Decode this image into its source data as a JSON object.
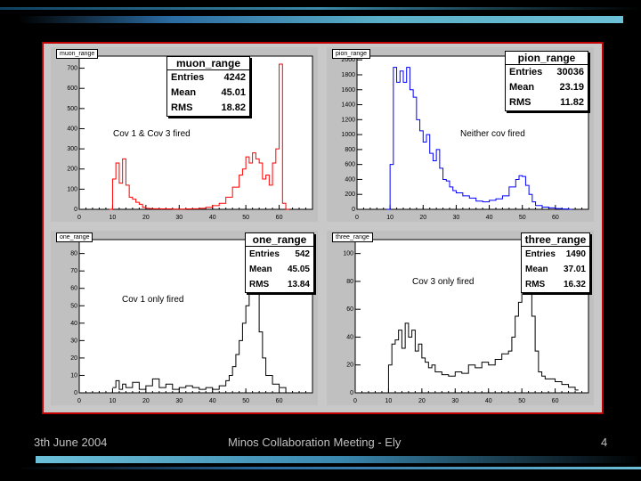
{
  "footer": {
    "date": "3th June 2004",
    "title": "Minos Collaboration Meeting - Ely",
    "page": "4"
  },
  "colors": {
    "background": "#000000",
    "frame": "#c00000",
    "pad": "#c0c0c0"
  },
  "panels": {
    "muon": {
      "tag": "muon_range",
      "stats_title": "muon_range",
      "entries": "4242",
      "mean": "45.01",
      "rms": "18.82",
      "note": "Cov 1 & Cov 3 fired",
      "color": "#ff0000"
    },
    "pion": {
      "tag": "pion_range",
      "stats_title": "pion_range",
      "entries": "30036",
      "mean": "23.19",
      "rms": "11.82",
      "note": "Neither cov fired",
      "color": "#0000ff"
    },
    "one": {
      "tag": "one_range",
      "stats_title": "one_range",
      "entries": "542",
      "mean": "45.05",
      "rms": "13.84",
      "note": "Cov 1 only fired",
      "color": "#000000"
    },
    "three": {
      "tag": "three_range",
      "stats_title": "three_range",
      "entries": "1490",
      "mean": "37.01",
      "rms": "16.32",
      "note": "Cov 3 only fired",
      "color": "#000000"
    }
  },
  "labels": {
    "entries": "Entries",
    "mean": "Mean",
    "rms": "RMS"
  },
  "chart_data": [
    {
      "type": "histogram",
      "name": "muon_range",
      "xlim": [
        0,
        70
      ],
      "ylim": [
        0,
        760
      ],
      "xticks": [
        0,
        10,
        20,
        30,
        40,
        50,
        60
      ],
      "yticks": [
        0,
        100,
        200,
        300,
        400,
        500,
        600,
        700
      ],
      "x": [
        9,
        10,
        11,
        12,
        13,
        14,
        15,
        16,
        17,
        18,
        19,
        20,
        21,
        22,
        24,
        26,
        28,
        30,
        32,
        34,
        36,
        38,
        40,
        42,
        44,
        46,
        48,
        49,
        50,
        51,
        52,
        53,
        54,
        55,
        56,
        57,
        58,
        59,
        60,
        61,
        62
      ],
      "values": [
        0,
        150,
        230,
        130,
        250,
        120,
        60,
        50,
        35,
        25,
        10,
        5,
        4,
        3,
        2,
        2,
        1,
        1,
        2,
        3,
        5,
        10,
        18,
        30,
        60,
        110,
        170,
        200,
        260,
        230,
        280,
        250,
        230,
        150,
        170,
        120,
        230,
        300,
        720,
        30,
        0
      ]
    },
    {
      "type": "histogram",
      "name": "pion_range",
      "xlim": [
        0,
        70
      ],
      "ylim": [
        0,
        2050
      ],
      "xticks": [
        0,
        10,
        20,
        30,
        40,
        50,
        60
      ],
      "yticks": [
        0,
        200,
        400,
        600,
        800,
        1000,
        1200,
        1400,
        1600,
        1800,
        2000
      ],
      "x": [
        9,
        10,
        11,
        12,
        13,
        14,
        15,
        16,
        17,
        18,
        19,
        20,
        21,
        22,
        23,
        24,
        25,
        26,
        27,
        28,
        29,
        30,
        32,
        34,
        36,
        38,
        40,
        42,
        44,
        46,
        48,
        49,
        50,
        51,
        52,
        53,
        54,
        56,
        58,
        60,
        62,
        64
      ],
      "values": [
        0,
        600,
        1900,
        1700,
        1850,
        1700,
        1900,
        1600,
        1500,
        1200,
        1050,
        900,
        1000,
        750,
        650,
        800,
        550,
        400,
        380,
        300,
        250,
        220,
        180,
        150,
        110,
        100,
        120,
        140,
        180,
        300,
        400,
        450,
        440,
        320,
        200,
        100,
        50,
        30,
        20,
        10,
        5,
        0
      ]
    },
    {
      "type": "histogram",
      "name": "one_range",
      "xlim": [
        0,
        70
      ],
      "ylim": [
        0,
        88
      ],
      "xticks": [
        0,
        10,
        20,
        30,
        40,
        50,
        60
      ],
      "yticks": [
        0,
        10,
        20,
        30,
        40,
        50,
        60,
        70,
        80
      ],
      "x": [
        10,
        11,
        12,
        13,
        14,
        16,
        18,
        20,
        22,
        24,
        26,
        28,
        30,
        32,
        34,
        36,
        38,
        40,
        42,
        44,
        45,
        46,
        47,
        48,
        49,
        50,
        51,
        52,
        53,
        54,
        55,
        56,
        58,
        60,
        62
      ],
      "values": [
        3,
        7,
        2,
        5,
        3,
        6,
        2,
        4,
        8,
        3,
        5,
        2,
        3,
        4,
        3,
        2,
        3,
        2,
        4,
        7,
        10,
        15,
        22,
        30,
        40,
        50,
        70,
        83,
        60,
        35,
        20,
        10,
        5,
        3,
        0
      ]
    },
    {
      "type": "histogram",
      "name": "three_range",
      "xlim": [
        0,
        70
      ],
      "ylim": [
        0,
        110
      ],
      "xticks": [
        0,
        10,
        20,
        30,
        40,
        50,
        60
      ],
      "yticks": [
        0,
        20,
        40,
        60,
        80,
        100
      ],
      "x": [
        9,
        10,
        11,
        12,
        13,
        14,
        15,
        16,
        17,
        18,
        19,
        20,
        21,
        22,
        23,
        24,
        26,
        28,
        30,
        32,
        34,
        36,
        38,
        40,
        42,
        44,
        46,
        47,
        48,
        49,
        50,
        51,
        52,
        53,
        54,
        55,
        56,
        57,
        58,
        60,
        62,
        64,
        66
      ],
      "values": [
        0,
        20,
        35,
        38,
        45,
        32,
        50,
        40,
        45,
        30,
        35,
        25,
        22,
        18,
        20,
        15,
        13,
        12,
        15,
        14,
        20,
        18,
        22,
        20,
        24,
        28,
        30,
        40,
        55,
        65,
        95,
        100,
        85,
        55,
        30,
        15,
        12,
        10,
        10,
        8,
        6,
        4,
        2
      ]
    }
  ]
}
